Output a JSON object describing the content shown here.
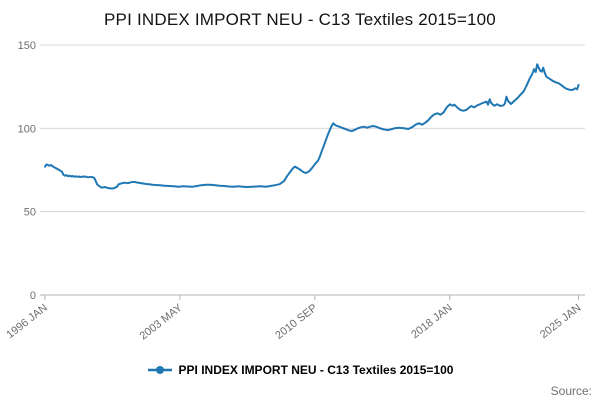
{
  "title": "PPI INDEX IMPORT NEU - C13 Textiles 2015=100",
  "legend": {
    "label": "PPI INDEX IMPORT NEU - C13 Textiles 2015=100"
  },
  "source_label": "Source:",
  "colors": {
    "line": "#1f77b4",
    "grid": "#d9d9d9",
    "axis": "#b3b3b3",
    "tick_text": "#6e6e6e",
    "title_text": "#121212"
  },
  "chart_data": {
    "type": "line",
    "title": "PPI INDEX IMPORT NEU - C13 Textiles 2015=100",
    "xlabel": "",
    "ylabel": "",
    "xlim": [
      1996.0,
      2025.35
    ],
    "ylim": [
      0,
      150
    ],
    "grid": true,
    "legend_position": "bottom",
    "y_ticks": [
      0,
      50,
      100,
      150
    ],
    "x_ticks": [
      {
        "x": 1996.0,
        "label": "1996 JAN"
      },
      {
        "x": 2003.3333,
        "label": "2003 MAY"
      },
      {
        "x": 2010.6667,
        "label": "2010 SEP"
      },
      {
        "x": 2018.0,
        "label": "2018 JAN"
      },
      {
        "x": 2025.0,
        "label": "2025 JAN"
      }
    ],
    "series": [
      {
        "name": "PPI INDEX IMPORT NEU - C13 Textiles 2015=100",
        "points": [
          [
            1996.0,
            77
          ],
          [
            1996.08,
            78.3
          ],
          [
            1996.17,
            78
          ],
          [
            1996.25,
            77.6
          ],
          [
            1996.33,
            78
          ],
          [
            1996.42,
            77.2
          ],
          [
            1996.5,
            76.6
          ],
          [
            1996.58,
            76.2
          ],
          [
            1996.67,
            75.6
          ],
          [
            1996.75,
            75.2
          ],
          [
            1996.83,
            74.6
          ],
          [
            1996.92,
            74
          ],
          [
            1997.0,
            72.2
          ],
          [
            1997.08,
            71.6
          ],
          [
            1997.17,
            71.9
          ],
          [
            1997.25,
            71.3
          ],
          [
            1997.33,
            71.6
          ],
          [
            1997.42,
            71.1
          ],
          [
            1997.5,
            71.4
          ],
          [
            1997.58,
            71
          ],
          [
            1997.67,
            71.2
          ],
          [
            1997.75,
            70.9
          ],
          [
            1997.83,
            71.1
          ],
          [
            1997.92,
            70.8
          ],
          [
            1998.0,
            70.9
          ],
          [
            1998.17,
            71.1
          ],
          [
            1998.33,
            70.6
          ],
          [
            1998.5,
            70.9
          ],
          [
            1998.67,
            70.4
          ],
          [
            1998.75,
            68.5
          ],
          [
            1998.83,
            66.5
          ],
          [
            1998.92,
            65.5
          ],
          [
            1999.0,
            65
          ],
          [
            1999.08,
            64.4
          ],
          [
            1999.25,
            64.8
          ],
          [
            1999.42,
            64.2
          ],
          [
            1999.58,
            63.9
          ],
          [
            1999.75,
            64.1
          ],
          [
            1999.92,
            65
          ],
          [
            2000.0,
            66.4
          ],
          [
            2000.17,
            67
          ],
          [
            2000.33,
            67.4
          ],
          [
            2000.5,
            67.1
          ],
          [
            2000.67,
            67.6
          ],
          [
            2000.83,
            67.9
          ],
          [
            2001.0,
            67.5
          ],
          [
            2001.17,
            67.2
          ],
          [
            2001.33,
            66.9
          ],
          [
            2001.5,
            66.6
          ],
          [
            2001.67,
            66.4
          ],
          [
            2001.83,
            66.2
          ],
          [
            2002.0,
            66
          ],
          [
            2002.25,
            65.8
          ],
          [
            2002.5,
            65.6
          ],
          [
            2002.75,
            65.4
          ],
          [
            2003.0,
            65.2
          ],
          [
            2003.25,
            65
          ],
          [
            2003.5,
            65.3
          ],
          [
            2003.75,
            65.1
          ],
          [
            2004.0,
            64.9
          ],
          [
            2004.25,
            65.4
          ],
          [
            2004.5,
            65.9
          ],
          [
            2004.75,
            66.1
          ],
          [
            2005.0,
            66.2
          ],
          [
            2005.25,
            65.9
          ],
          [
            2005.5,
            65.6
          ],
          [
            2005.75,
            65.4
          ],
          [
            2006.0,
            65.1
          ],
          [
            2006.25,
            65
          ],
          [
            2006.5,
            65.2
          ],
          [
            2006.75,
            65
          ],
          [
            2007.0,
            64.8
          ],
          [
            2007.25,
            64.9
          ],
          [
            2007.5,
            65.1
          ],
          [
            2007.75,
            65.2
          ],
          [
            2008.0,
            65
          ],
          [
            2008.25,
            65.4
          ],
          [
            2008.5,
            65.9
          ],
          [
            2008.75,
            66.5
          ],
          [
            2009.0,
            68.5
          ],
          [
            2009.17,
            71.5
          ],
          [
            2009.33,
            74
          ],
          [
            2009.5,
            76.3
          ],
          [
            2009.58,
            77
          ],
          [
            2009.75,
            76
          ],
          [
            2009.92,
            74.8
          ],
          [
            2010.0,
            74
          ],
          [
            2010.17,
            73.2
          ],
          [
            2010.33,
            74
          ],
          [
            2010.5,
            76
          ],
          [
            2010.67,
            78.5
          ],
          [
            2010.83,
            80.5
          ],
          [
            2010.92,
            82.5
          ],
          [
            2011.0,
            85
          ],
          [
            2011.08,
            87.5
          ],
          [
            2011.17,
            90
          ],
          [
            2011.25,
            92.5
          ],
          [
            2011.33,
            95
          ],
          [
            2011.42,
            97.5
          ],
          [
            2011.5,
            99.5
          ],
          [
            2011.58,
            101.5
          ],
          [
            2011.67,
            103
          ],
          [
            2011.75,
            102.2
          ],
          [
            2011.83,
            101.6
          ],
          [
            2012.0,
            101
          ],
          [
            2012.17,
            100.2
          ],
          [
            2012.33,
            99.6
          ],
          [
            2012.5,
            98.8
          ],
          [
            2012.67,
            98.4
          ],
          [
            2012.83,
            99
          ],
          [
            2013.0,
            100
          ],
          [
            2013.17,
            100.6
          ],
          [
            2013.33,
            101
          ],
          [
            2013.5,
            100.4
          ],
          [
            2013.67,
            101
          ],
          [
            2013.83,
            101.4
          ],
          [
            2014.0,
            101
          ],
          [
            2014.17,
            100.2
          ],
          [
            2014.33,
            99.6
          ],
          [
            2014.5,
            99.2
          ],
          [
            2014.67,
            99
          ],
          [
            2014.83,
            99.5
          ],
          [
            2015.0,
            100
          ],
          [
            2015.25,
            100.4
          ],
          [
            2015.5,
            100
          ],
          [
            2015.75,
            99.6
          ],
          [
            2016.0,
            101
          ],
          [
            2016.17,
            102.4
          ],
          [
            2016.33,
            103
          ],
          [
            2016.5,
            102.2
          ],
          [
            2016.67,
            103.4
          ],
          [
            2016.83,
            104.8
          ],
          [
            2017.0,
            107
          ],
          [
            2017.17,
            108.4
          ],
          [
            2017.33,
            109
          ],
          [
            2017.5,
            108.2
          ],
          [
            2017.67,
            109.6
          ],
          [
            2017.83,
            112.5
          ],
          [
            2018.0,
            114.4
          ],
          [
            2018.08,
            114
          ],
          [
            2018.17,
            113.6
          ],
          [
            2018.25,
            114.2
          ],
          [
            2018.42,
            112.4
          ],
          [
            2018.58,
            111
          ],
          [
            2018.75,
            110.5
          ],
          [
            2018.92,
            111.2
          ],
          [
            2019.0,
            112
          ],
          [
            2019.17,
            113.4
          ],
          [
            2019.33,
            112.6
          ],
          [
            2019.5,
            113.8
          ],
          [
            2019.67,
            114.6
          ],
          [
            2019.83,
            115.4
          ],
          [
            2020.0,
            116
          ],
          [
            2020.08,
            114.2
          ],
          [
            2020.17,
            117.4
          ],
          [
            2020.25,
            115.2
          ],
          [
            2020.42,
            113.6
          ],
          [
            2020.58,
            114.4
          ],
          [
            2020.75,
            113.4
          ],
          [
            2020.92,
            113.8
          ],
          [
            2021.0,
            115
          ],
          [
            2021.08,
            119
          ],
          [
            2021.17,
            116.4
          ],
          [
            2021.33,
            114.6
          ],
          [
            2021.5,
            116.4
          ],
          [
            2021.67,
            118
          ],
          [
            2021.83,
            120
          ],
          [
            2022.0,
            122
          ],
          [
            2022.17,
            125.5
          ],
          [
            2022.33,
            129.5
          ],
          [
            2022.5,
            133
          ],
          [
            2022.58,
            135.5
          ],
          [
            2022.67,
            133.8
          ],
          [
            2022.75,
            138.5
          ],
          [
            2022.83,
            136.5
          ],
          [
            2022.92,
            134.5
          ],
          [
            2023.0,
            134
          ],
          [
            2023.08,
            136.4
          ],
          [
            2023.17,
            133
          ],
          [
            2023.25,
            131
          ],
          [
            2023.42,
            129.8
          ],
          [
            2023.58,
            128.6
          ],
          [
            2023.75,
            127.6
          ],
          [
            2023.92,
            127
          ],
          [
            2024.0,
            126.4
          ],
          [
            2024.17,
            125
          ],
          [
            2024.33,
            123.8
          ],
          [
            2024.5,
            123.2
          ],
          [
            2024.67,
            123
          ],
          [
            2024.83,
            124
          ],
          [
            2024.92,
            123.4
          ],
          [
            2025.0,
            126
          ]
        ]
      }
    ]
  }
}
